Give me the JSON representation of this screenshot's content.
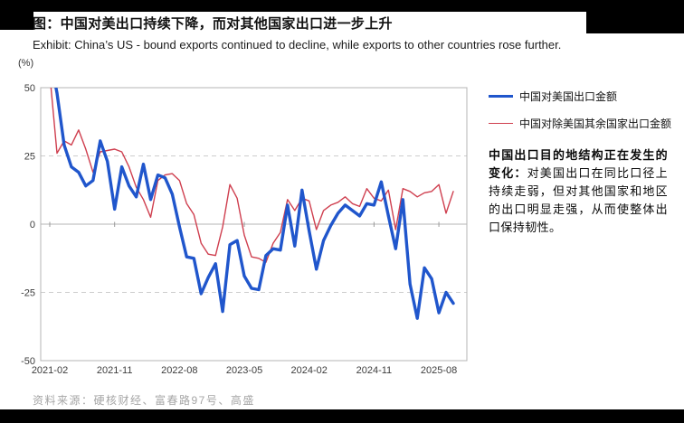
{
  "header": {
    "title_zh": "图：中国对美出口持续下降，而对其他国家出口进一步上升",
    "subtitle_en": "Exhibit: China’s US - bound exports continued to decline, while exports to other countries rose further.",
    "unit_label": "(%)"
  },
  "legend": [
    {
      "label": "中国对美国出口金额",
      "color": "#2056cc",
      "thickness": 3.5
    },
    {
      "label": "中国对除美国其余国家出口金额",
      "color": "#cf3f4f",
      "thickness": 1.5
    }
  ],
  "commentary": {
    "bold": "中国出口目的地结构正在发生的变化：",
    "rest": "对美国出口在同比口径上持续走弱，但对其他国家和地区的出口明显走强，从而使整体出口保持韧性。"
  },
  "footer": {
    "source": "资料来源：硬核财经、富春路97号、高盛"
  },
  "colors": {
    "us_line": "#2056cc",
    "non_us_line": "#cf3f4f",
    "grid_dashed": "#cdcdcd",
    "grid_zero": "#b5b5b5",
    "frame": "#b5b5b5",
    "axis_text": "#3d3d3d",
    "letterbox": "#000000"
  },
  "chart_data": {
    "type": "line",
    "title": "中国对美出口 vs 对其他国家出口（同比，%）",
    "xlabel": "",
    "ylabel": "(%)",
    "ylim": [
      -50,
      50
    ],
    "yticks": [
      50,
      25,
      0,
      -25,
      -50
    ],
    "grid": "dashed at +25/-25, solid at 0, framed box",
    "legend_position": "right",
    "x_tick_labels": [
      "2021-02",
      "2021-11",
      "2022-08",
      "2023-05",
      "2024-02",
      "2024-11",
      "2025-08"
    ],
    "x_tick_indices": [
      0,
      9,
      18,
      27,
      36,
      45,
      54
    ],
    "months": [
      "2021-02",
      "2021-03",
      "2021-04",
      "2021-05",
      "2021-06",
      "2021-07",
      "2021-08",
      "2021-09",
      "2021-10",
      "2021-11",
      "2021-12",
      "2022-01",
      "2022-02",
      "2022-03",
      "2022-04",
      "2022-05",
      "2022-06",
      "2022-07",
      "2022-08",
      "2022-09",
      "2022-10",
      "2022-11",
      "2022-12",
      "2023-01",
      "2023-02",
      "2023-03",
      "2023-04",
      "2023-05",
      "2023-06",
      "2023-07",
      "2023-08",
      "2023-09",
      "2023-10",
      "2023-11",
      "2023-12",
      "2024-01",
      "2024-02",
      "2024-03",
      "2024-04",
      "2024-05",
      "2024-06",
      "2024-07",
      "2024-08",
      "2024-09",
      "2024-10",
      "2024-11",
      "2024-12",
      "2025-01",
      "2025-02",
      "2025-03",
      "2025-04",
      "2025-05",
      "2025-06",
      "2025-07",
      "2025-08",
      "2025-09",
      "2025-10"
    ],
    "series": [
      {
        "name": "中国对美国出口金额",
        "color": "#2056cc",
        "width": 3.4,
        "values": [
          62,
          48,
          29,
          21,
          19,
          14,
          16,
          30.5,
          23,
          5.5,
          21,
          14,
          10,
          22,
          9,
          18,
          17,
          11,
          -1,
          -12,
          -12.5,
          -25.5,
          -19.5,
          -14.5,
          -32,
          -7.5,
          -6,
          -19,
          -23.5,
          -24,
          -11.5,
          -9,
          -9.5,
          7,
          -8,
          12.5,
          -2.5,
          -16.5,
          -6,
          -0.5,
          4,
          7,
          5,
          3,
          7.5,
          7,
          15.5,
          3,
          -9,
          9,
          -22,
          -34.5,
          -16,
          -20,
          -32.5,
          -25,
          -29
        ]
      },
      {
        "name": "中国对除美国其余国家出口金额",
        "color": "#cf3f4f",
        "width": 1.4,
        "values": [
          55,
          26,
          30.5,
          29,
          34.5,
          27.5,
          19,
          26.5,
          27,
          27.5,
          26.5,
          21,
          13.5,
          9,
          2.5,
          16,
          18,
          18.5,
          16,
          7.5,
          3.5,
          -7,
          -11,
          -11.5,
          -1,
          14.5,
          9.5,
          -4,
          -12,
          -12.5,
          -14,
          -7,
          -3,
          9,
          5,
          9.5,
          8.5,
          -2,
          5,
          7,
          8,
          10,
          7.5,
          6.5,
          13,
          9.5,
          8.5,
          12.5,
          -2,
          13,
          12,
          10,
          11.5,
          12,
          14.5,
          4,
          12
        ]
      }
    ]
  }
}
